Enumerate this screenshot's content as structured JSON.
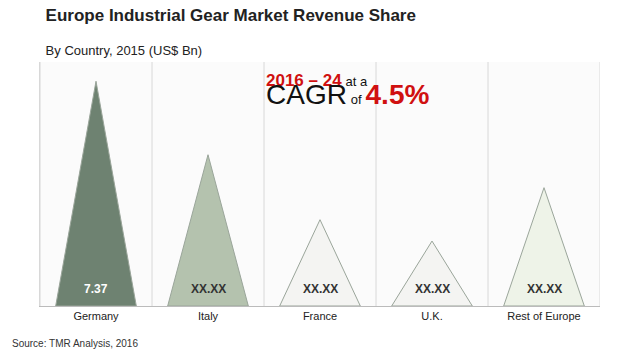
{
  "chart_data": {
    "type": "pyramid",
    "title": "Europe Industrial Gear Market Revenue Share",
    "subtitle": "By Country, 2015 (US$ Bn)",
    "categories": [
      "Germany",
      "Italy",
      "France",
      "U.K.",
      "Rest of Europe"
    ],
    "values": [
      7.37,
      4.96,
      2.83,
      2.13,
      3.88
    ],
    "value_labels": [
      "7.37",
      "XX.XX",
      "XX.XX",
      "XX.XX",
      "XX.XX"
    ],
    "data_labels": true,
    "colors": [
      "#6e8271",
      "#b4c2ae",
      "#f4f4f2",
      "#f4f4f2",
      "#eef3e8"
    ],
    "ylim": [
      0,
      8
    ],
    "tick_labels": "x",
    "grid": false,
    "annotation": [
      [
        "2016 – 24",
        "at a"
      ],
      [
        "CAGR",
        "of",
        "4.5%"
      ]
    ],
    "source": "Source: TMR Analysis, 2016"
  }
}
